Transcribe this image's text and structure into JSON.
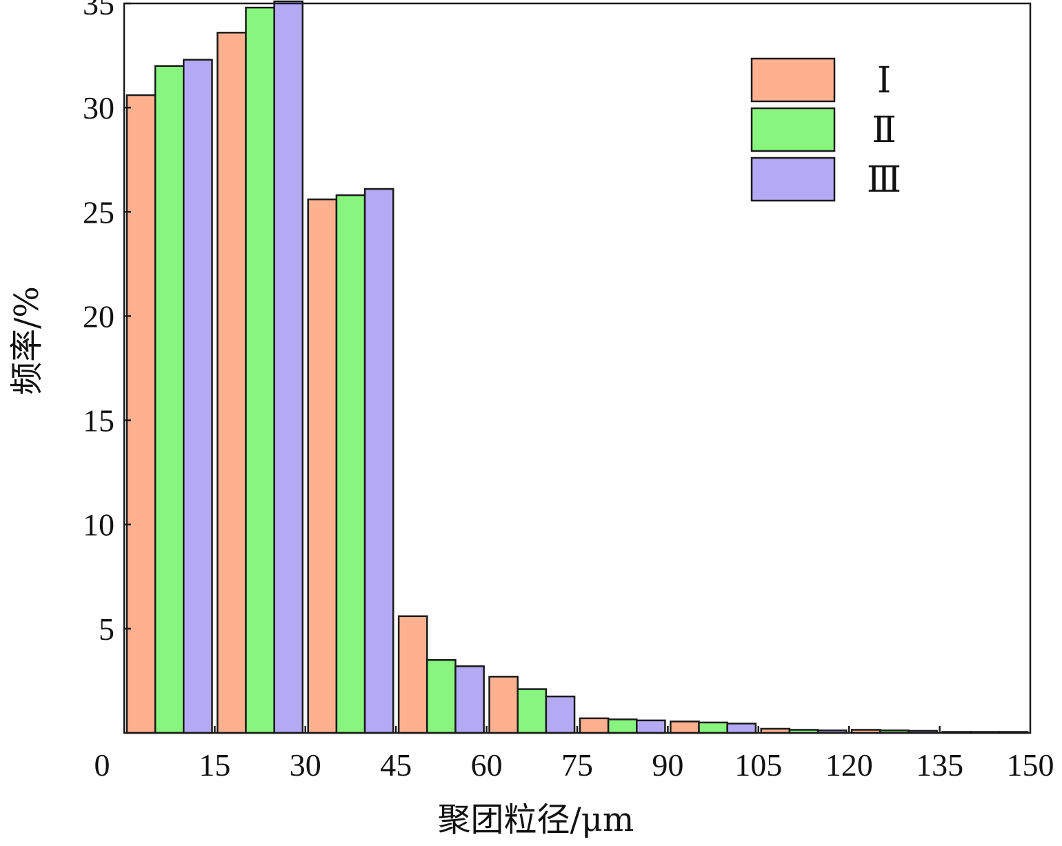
{
  "chart_data": {
    "type": "bar",
    "xlabel": "聚团粒径/μm",
    "ylabel": "频率/%",
    "xlim": [
      0,
      150
    ],
    "ylim": [
      0,
      35
    ],
    "x_ticks": [
      0,
      15,
      30,
      45,
      60,
      75,
      90,
      105,
      120,
      135,
      150
    ],
    "y_ticks": [
      5,
      10,
      15,
      20,
      25,
      30,
      35
    ],
    "bin_width": 15,
    "bins": [
      [
        0,
        15
      ],
      [
        15,
        30
      ],
      [
        30,
        45
      ],
      [
        45,
        60
      ],
      [
        60,
        75
      ],
      [
        75,
        90
      ],
      [
        90,
        105
      ],
      [
        105,
        120
      ],
      [
        120,
        135
      ],
      [
        135,
        150
      ]
    ],
    "series": [
      {
        "name": "Ⅰ",
        "color": "#FFB08F",
        "values": [
          30.6,
          33.6,
          25.6,
          5.6,
          2.7,
          0.7,
          0.55,
          0.2,
          0.15,
          0.05
        ]
      },
      {
        "name": "Ⅱ",
        "color": "#88F57E",
        "values": [
          32.0,
          34.8,
          25.8,
          3.5,
          2.1,
          0.65,
          0.5,
          0.15,
          0.12,
          0.05
        ]
      },
      {
        "name": "Ⅲ",
        "color": "#B3A9F5",
        "values": [
          32.3,
          35.1,
          26.1,
          3.2,
          1.75,
          0.6,
          0.45,
          0.12,
          0.1,
          0.05
        ]
      }
    ],
    "grid": false,
    "legend_position": "top-right"
  }
}
